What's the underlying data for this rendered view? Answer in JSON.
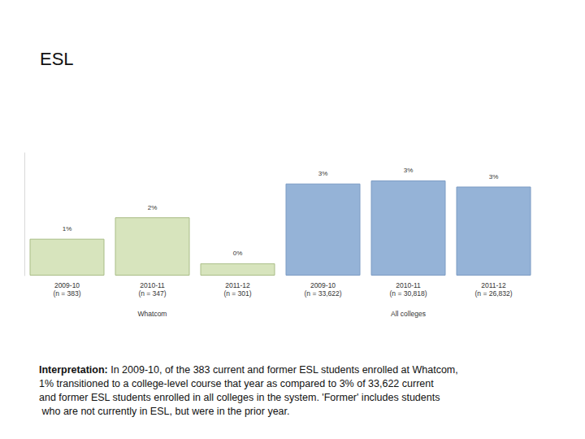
{
  "chart_data": {
    "type": "bar",
    "title": "ESL",
    "categories": [
      "2009-10\n(n = 383)",
      "2010-11\n(n = 347)",
      "2011-12\n(n = 301)",
      "2009-10\n(n = 33,622)",
      "2010-11\n(n = 30,818)",
      "2011-12\n(n = 26,832)"
    ],
    "series": [
      {
        "name": "Whatcom",
        "color": "#d7e4bd",
        "values": [
          1.2,
          1.9,
          0.4,
          null,
          null,
          null
        ],
        "value_labels": [
          "1%",
          "2%",
          "0%",
          null,
          null,
          null
        ]
      },
      {
        "name": "All colleges",
        "color": "#95b3d7",
        "values": [
          null,
          null,
          null,
          3.0,
          3.1,
          2.9
        ],
        "value_labels": [
          null,
          null,
          null,
          "3%",
          "3%",
          "3%"
        ]
      }
    ],
    "ylim": [
      0,
      4
    ],
    "data_labels": true,
    "tick_labels": "x",
    "annotations": [
      {
        "label": "Interpretation:",
        "text": "In 2009-10, of the 383 current and former ESL students enrolled at Whatcom, 1% transitioned to a college-level course that year as compared to 3% of 33,622 current and former ESL students enrolled in all colleges in the system. 'Former' includes students who are not currently in ESL, but were in the prior year."
      }
    ]
  }
}
